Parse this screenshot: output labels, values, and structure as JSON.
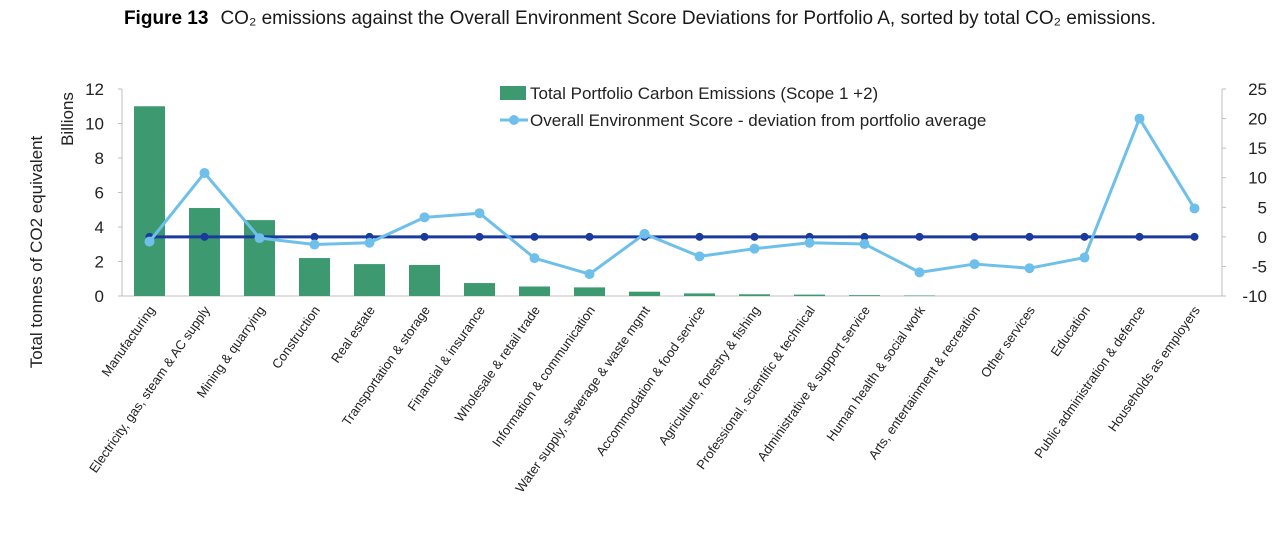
{
  "figure": {
    "label": "Figure 13",
    "caption": "CO₂ emissions against the Overall Environment Score Deviations for Portfolio A, sorted by total CO₂ emissions."
  },
  "chart_data": {
    "type": "bar",
    "categories": [
      "Manufacturing",
      "Electricity, gas, steam & AC supply",
      "Mining & quarrying",
      "Construction",
      "Real estate",
      "Transportation & storage",
      "Financial & insurance",
      "Wholesale & retail trade",
      "Information & communication",
      "Water supply, sewerage & waste mgmt",
      "Accommodation & food service",
      "Agriculture, forestry & fishing",
      "Professional, scientific & technical",
      "Administrative & support service",
      "Human health & social work",
      "Arts, entertainment & recreation",
      "Other services",
      "Education",
      "Public administration & defence",
      "Households as employers"
    ],
    "series": [
      {
        "name": "Total Portfolio Carbon Emissions (Scope 1 +2)",
        "type": "bar",
        "axis": "left",
        "values": [
          11.0,
          5.1,
          4.4,
          2.2,
          1.85,
          1.8,
          0.75,
          0.55,
          0.5,
          0.25,
          0.15,
          0.1,
          0.08,
          0.05,
          0.03,
          0,
          0,
          0,
          0,
          0
        ]
      },
      {
        "name": "Overall Environment Score - deviation from portfolio average",
        "type": "line",
        "axis": "right",
        "values": [
          -0.8,
          10.8,
          -0.2,
          -1.3,
          -1.0,
          3.3,
          4.0,
          -3.6,
          -6.3,
          0.5,
          -3.3,
          -2.0,
          -1.0,
          -1.2,
          -6.0,
          -4.6,
          -5.3,
          -3.5,
          20.0,
          4.8
        ]
      },
      {
        "name": "",
        "type": "line",
        "axis": "right",
        "values": [
          0,
          0,
          0,
          0,
          0,
          0,
          0,
          0,
          0,
          0,
          0,
          0,
          0,
          0,
          0,
          0,
          0,
          0,
          0,
          0
        ]
      }
    ],
    "ylabel": "Total tonnes of CO2 equivalent",
    "ylabel_units": "Billions",
    "ylim": [
      0,
      12
    ],
    "yticks": [
      0,
      2,
      4,
      6,
      8,
      10,
      12
    ],
    "y2lim": [
      -10,
      25
    ],
    "y2ticks": [
      -10,
      -5,
      0,
      5,
      10,
      15,
      20,
      25
    ],
    "grid": false,
    "legend_position": "top-center",
    "colors": {
      "bars": "#3d9a70",
      "score_line": "#6ec0ea",
      "zero_line": "#1b3a9e",
      "axis": "#bfbfbf"
    }
  }
}
